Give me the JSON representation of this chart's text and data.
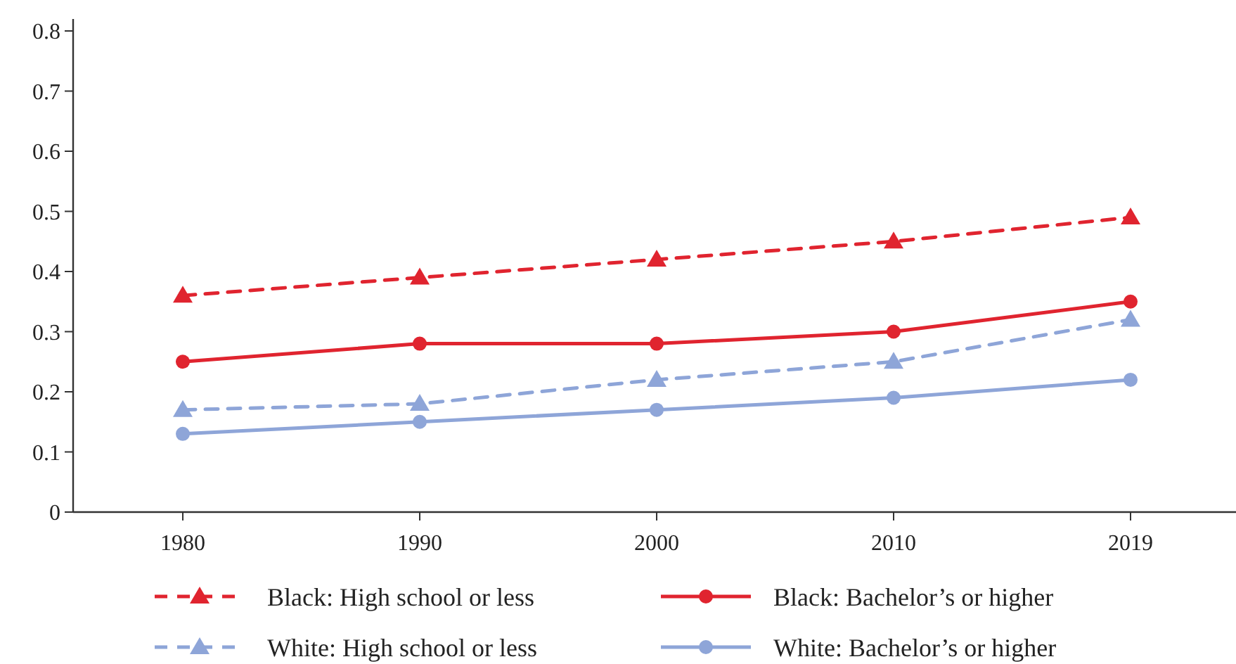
{
  "chart_data": {
    "type": "line",
    "categories": [
      "1980",
      "1990",
      "2000",
      "2010",
      "2019"
    ],
    "ylim": [
      0,
      0.82
    ],
    "yticks": [
      0,
      0.1,
      0.2,
      0.3,
      0.4,
      0.5,
      0.6,
      0.7,
      0.8
    ],
    "legend": "bottom",
    "grid": false,
    "series": [
      {
        "name": "Black: High school or less",
        "color": "#e0242f",
        "line_style": "dashed",
        "marker": "triangle",
        "values": [
          0.36,
          0.39,
          0.42,
          0.45,
          0.49
        ]
      },
      {
        "name": "White: High school or less",
        "color": "#8ea5d8",
        "line_style": "dashed",
        "marker": "triangle",
        "values": [
          0.17,
          0.18,
          0.22,
          0.25,
          0.32
        ]
      },
      {
        "name": "Black: Bachelor’s or higher",
        "color": "#e0242f",
        "line_style": "solid",
        "marker": "circle",
        "values": [
          0.25,
          0.28,
          0.28,
          0.3,
          0.35
        ]
      },
      {
        "name": "White: Bachelor’s or higher",
        "color": "#8ea5d8",
        "line_style": "solid",
        "marker": "circle",
        "values": [
          0.13,
          0.15,
          0.17,
          0.19,
          0.22
        ]
      }
    ]
  }
}
